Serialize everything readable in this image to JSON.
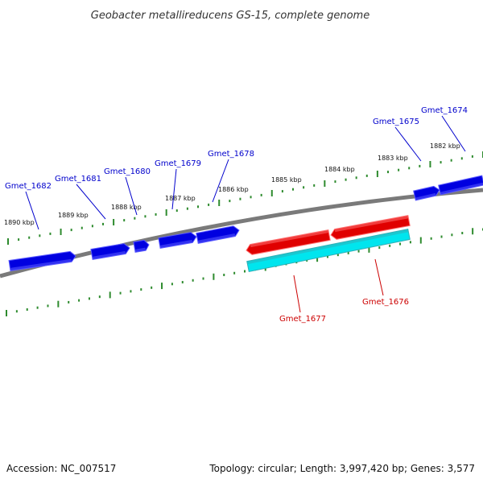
{
  "title": "Geobacter metallireducens GS-15, complete genome",
  "footer": {
    "accession": "Accession: NC_007517",
    "summary": "Topology: circular; Length: 3,997,420 bp; Genes: 3,577"
  },
  "colors": {
    "background": "#ffffff",
    "backbone": "#7a7a7a",
    "ticks": "#2e8b2e",
    "forward_gene": "#0000e0",
    "reverse_gene": "#e00000",
    "reverse_cds": "#00e5ee",
    "label_forward": "#0000cc",
    "label_reverse": "#cc0000"
  },
  "ticks": [
    {
      "label": "1890 kbp"
    },
    {
      "label": "1889 kbp"
    },
    {
      "label": "1888 kbp"
    },
    {
      "label": "1887 kbp"
    },
    {
      "label": "1886 kbp"
    },
    {
      "label": "1885 kbp"
    },
    {
      "label": "1884 kbp"
    },
    {
      "label": "1883 kbp"
    },
    {
      "label": "1882 kbp"
    }
  ],
  "genes": [
    {
      "label": "Gmet_1682",
      "strand": "forward"
    },
    {
      "label": "Gmet_1681",
      "strand": "forward"
    },
    {
      "label": "Gmet_1680",
      "strand": "forward"
    },
    {
      "label": "Gmet_1679",
      "strand": "forward"
    },
    {
      "label": "Gmet_1678",
      "strand": "forward"
    },
    {
      "label": "Gmet_1677",
      "strand": "reverse"
    },
    {
      "label": "Gmet_1676",
      "strand": "reverse"
    },
    {
      "label": "Gmet_1675",
      "strand": "forward"
    },
    {
      "label": "Gmet_1674",
      "strand": "forward"
    }
  ]
}
